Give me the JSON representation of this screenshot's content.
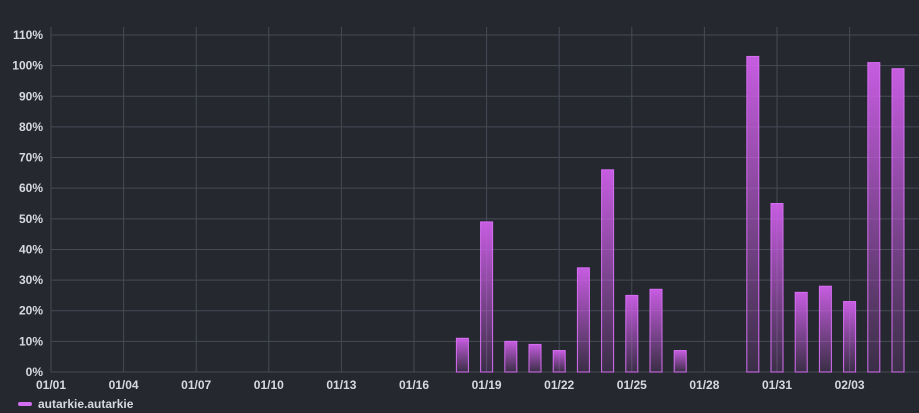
{
  "chart_data": {
    "type": "bar",
    "title": "",
    "xlabel": "",
    "ylabel": "",
    "x_ticks": [
      "01/01",
      "01/04",
      "01/07",
      "01/10",
      "01/13",
      "01/16",
      "01/19",
      "01/22",
      "01/25",
      "01/28",
      "01/31",
      "02/03"
    ],
    "y_ticks": [
      "0%",
      "10%",
      "20%",
      "30%",
      "40%",
      "50%",
      "60%",
      "70%",
      "80%",
      "90%",
      "100%",
      "110%"
    ],
    "ylim": [
      0,
      110
    ],
    "grid": true,
    "legend_position": "bottom-left",
    "categories": [
      "01/18",
      "01/19",
      "01/20",
      "01/21",
      "01/22",
      "01/23",
      "01/24",
      "01/25",
      "01/26",
      "01/27",
      "01/30",
      "01/31",
      "02/01",
      "02/02",
      "02/03",
      "02/04",
      "02/05"
    ],
    "series": [
      {
        "name": "autarkie.autarkie",
        "color": "#d56ef2",
        "values": [
          11,
          49,
          10,
          9,
          7,
          34,
          66,
          25,
          27,
          7,
          103,
          55,
          26,
          28,
          23,
          101,
          99
        ]
      }
    ]
  }
}
